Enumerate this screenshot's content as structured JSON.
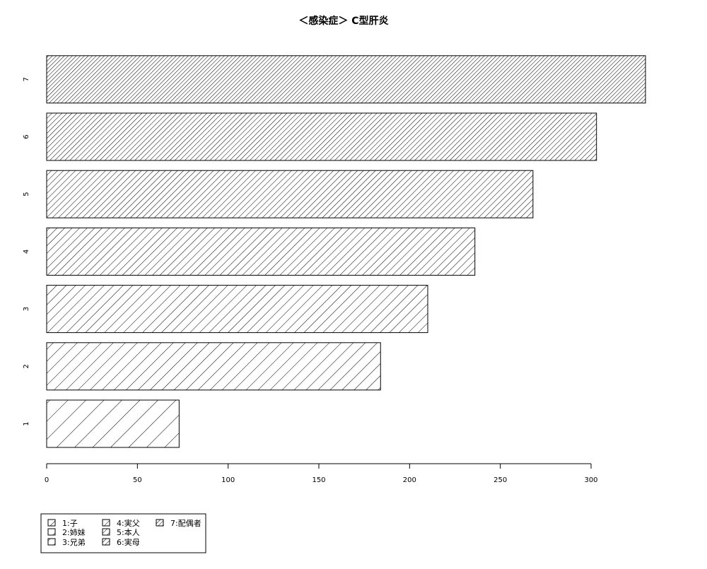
{
  "chart_data": {
    "type": "bar",
    "orientation": "horizontal",
    "title": "＜感染症＞ C型肝炎",
    "xlabel": "",
    "ylabel": "",
    "categories": [
      "1",
      "2",
      "3",
      "4",
      "5",
      "6",
      "7"
    ],
    "values": [
      73,
      184,
      210,
      236,
      268,
      303,
      330
    ],
    "xlim": [
      0,
      330
    ],
    "xticks": [
      0,
      50,
      100,
      150,
      200,
      250,
      300
    ],
    "grid": false,
    "legend_position": "bottom-left",
    "legend": [
      {
        "key": "1",
        "label": "1:子"
      },
      {
        "key": "2",
        "label": "2:姉妹"
      },
      {
        "key": "3",
        "label": "3:兄弟"
      },
      {
        "key": "4",
        "label": "4:実父"
      },
      {
        "key": "5",
        "label": "5:本人"
      },
      {
        "key": "6",
        "label": "6:実母"
      },
      {
        "key": "7",
        "label": "7:配偶者"
      }
    ],
    "colors": {
      "fill": "#ffffff",
      "stroke": "#000000"
    }
  }
}
